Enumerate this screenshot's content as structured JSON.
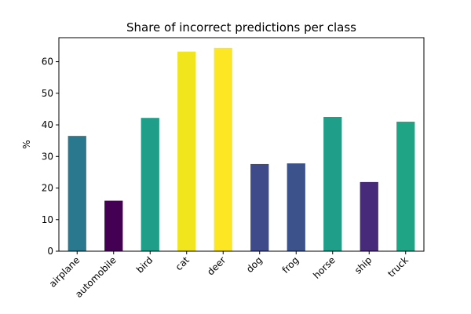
{
  "chart_data": {
    "type": "bar",
    "title": "Share of incorrect predictions per class",
    "xlabel": "",
    "ylabel": "%",
    "categories": [
      "airplane",
      "automobile",
      "bird",
      "cat",
      "deer",
      "dog",
      "frog",
      "horse",
      "ship",
      "truck"
    ],
    "values": [
      36.5,
      16.0,
      42.2,
      63.2,
      64.4,
      27.6,
      27.8,
      42.5,
      21.9,
      41.0
    ],
    "bar_colors": [
      "#2a788e",
      "#440154",
      "#1f9e89",
      "#f1e51d",
      "#fde725",
      "#3e4a89",
      "#3b528b",
      "#1f9e89",
      "#472a7a",
      "#20a486"
    ],
    "ylim": [
      0,
      67.6
    ],
    "yticks": [
      0,
      10,
      20,
      30,
      40,
      50,
      60
    ],
    "grid": false,
    "legend": "none"
  }
}
